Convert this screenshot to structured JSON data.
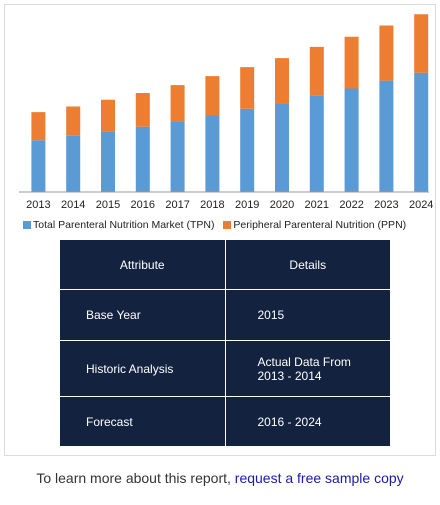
{
  "chart_data": {
    "type": "bar",
    "stacked": true,
    "categories": [
      "2013",
      "2014",
      "2015",
      "2016",
      "2017",
      "2018",
      "2019",
      "2020",
      "2021",
      "2022",
      "2023",
      "2024"
    ],
    "series": [
      {
        "name": "Total Parenteral Nutrition Market (TPN)",
        "color": "#5b9bd5",
        "values": [
          46,
          50,
          54,
          58,
          63,
          68,
          74,
          79,
          86,
          92,
          99,
          106
        ]
      },
      {
        "name": "Peripheral Parenteral Nutrition (PPN)",
        "color": "#ed7d31",
        "values": [
          25,
          26,
          28,
          30,
          32,
          35,
          37,
          40,
          43,
          46,
          49,
          52
        ]
      }
    ],
    "ylim": [
      0,
      160
    ],
    "legend_position": "bottom",
    "grid": false
  },
  "table": {
    "headers": [
      "Attribute",
      "Details"
    ],
    "rows": [
      [
        "Base Year",
        "2015"
      ],
      [
        "Historic Analysis",
        "Actual Data From 2013 - 2014"
      ],
      [
        "Forecast",
        "2016 - 2024"
      ]
    ]
  },
  "footer": {
    "text": "To learn more about this report,",
    "link": "request a free sample copy"
  }
}
